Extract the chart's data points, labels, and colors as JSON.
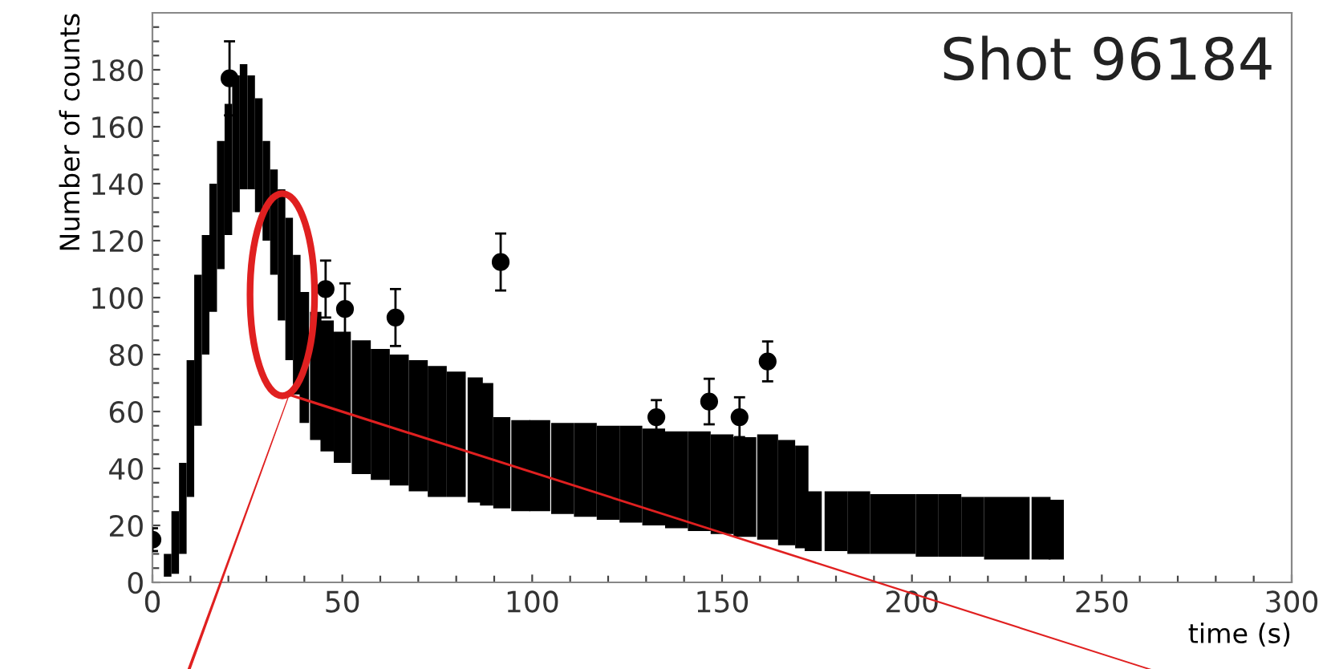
{
  "chart_data": {
    "type": "scatter",
    "title": "Shot 96184",
    "xlabel": "time (s)",
    "ylabel": "Number of counts",
    "xlim": [
      0,
      300
    ],
    "ylim": [
      0,
      200
    ],
    "xticks": [
      0,
      {
        "value": 10,
        "label": null
      },
      {
        "value": 20,
        "label": null
      },
      {
        "value": 30,
        "label": null
      },
      {
        "value": 40,
        "label": null
      },
      50,
      {
        "value": 60,
        "label": null
      },
      {
        "value": 70,
        "label": null
      },
      {
        "value": 80,
        "label": null
      },
      {
        "value": 90,
        "label": null
      },
      100,
      {
        "value": 110,
        "label": null
      },
      {
        "value": 120,
        "label": null
      },
      {
        "value": 130,
        "label": null
      },
      {
        "value": 140,
        "label": null
      },
      150,
      {
        "value": 160,
        "label": null
      },
      {
        "value": 170,
        "label": null
      },
      {
        "value": 180,
        "label": null
      },
      {
        "value": 190,
        "label": null
      },
      200,
      {
        "value": 210,
        "label": null
      },
      {
        "value": 220,
        "label": null
      },
      {
        "value": 230,
        "label": null
      },
      {
        "value": 240,
        "label": null
      },
      250,
      {
        "value": 260,
        "label": null
      },
      {
        "value": 270,
        "label": null
      },
      {
        "value": 280,
        "label": null
      },
      {
        "value": 290,
        "label": null
      },
      300
    ],
    "yticks": [
      0,
      {
        "value": 5,
        "label": null
      },
      {
        "value": 10,
        "label": null
      },
      {
        "value": 15,
        "label": null
      },
      20,
      {
        "value": 25,
        "label": null
      },
      {
        "value": 30,
        "label": null
      },
      {
        "value": 35,
        "label": null
      },
      40,
      {
        "value": 45,
        "label": null
      },
      {
        "value": 50,
        "label": null
      },
      {
        "value": 55,
        "label": null
      },
      60,
      {
        "value": 65,
        "label": null
      },
      {
        "value": 70,
        "label": null
      },
      {
        "value": 75,
        "label": null
      },
      80,
      {
        "value": 85,
        "label": null
      },
      {
        "value": 90,
        "label": null
      },
      {
        "value": 95,
        "label": null
      },
      100,
      {
        "value": 105,
        "label": null
      },
      {
        "value": 110,
        "label": null
      },
      {
        "value": 115,
        "label": null
      },
      120,
      {
        "value": 125,
        "label": null
      },
      {
        "value": 130,
        "label": null
      },
      {
        "value": 135,
        "label": null
      },
      140,
      {
        "value": 145,
        "label": null
      },
      {
        "value": 150,
        "label": null
      },
      {
        "value": 155,
        "label": null
      },
      160,
      {
        "value": 165,
        "label": null
      },
      {
        "value": 170,
        "label": null
      },
      {
        "value": 175,
        "label": null
      },
      180,
      {
        "value": 185,
        "label": null
      },
      {
        "value": 190,
        "label": null
      },
      {
        "value": 195,
        "label": null
      }
    ],
    "grid": false,
    "legend": false,
    "marker": "circle",
    "series": [
      {
        "color": "#000000",
        "x": [
          4,
          6,
          8,
          10,
          12,
          14,
          16,
          18,
          20,
          22,
          24,
          26,
          28,
          30,
          32,
          34,
          36,
          38,
          40,
          43,
          46,
          50,
          55,
          60,
          65,
          70,
          75,
          80,
          85,
          88,
          92,
          97,
          102,
          108,
          114,
          120,
          126,
          132,
          138,
          144,
          150,
          156,
          162,
          167,
          171,
          174,
          180,
          186,
          192,
          198,
          204,
          210,
          216,
          222,
          228,
          234,
          238
        ],
        "type": "bar",
        "base": [
          2,
          3,
          10,
          30,
          55,
          80,
          95,
          110,
          122,
          130,
          138,
          138,
          130,
          120,
          108,
          92,
          78,
          66,
          56,
          50,
          46,
          42,
          38,
          36,
          34,
          32,
          30,
          30,
          28,
          27,
          26,
          25,
          25,
          24,
          23,
          22,
          21,
          20,
          19,
          18,
          17,
          16,
          15,
          13,
          12,
          11,
          11,
          10,
          10,
          10,
          9,
          9,
          9,
          8,
          8,
          8,
          8
        ],
        "values": [
          8,
          22,
          32,
          48,
          53,
          42,
          45,
          45,
          46,
          48,
          44,
          40,
          40,
          35,
          37,
          46,
          50,
          49,
          46,
          45,
          46,
          46,
          47,
          46,
          46,
          46,
          46,
          44,
          44,
          43,
          32,
          32,
          32,
          32,
          33,
          33,
          34,
          34,
          34,
          35,
          35,
          35,
          37,
          37,
          36,
          21,
          21,
          22,
          21,
          21,
          22,
          22,
          21,
          22,
          22,
          22,
          21
        ]
      },
      {
        "color": "#000000",
        "x": [
          0,
          20.3,
          45.6,
          50.7,
          64,
          91.7,
          132.7,
          146.6,
          154.6,
          162
        ],
        "values": [
          15,
          177,
          103,
          96,
          93,
          112.5,
          58,
          63.5,
          58,
          77.6
        ],
        "errors": [
          4,
          13,
          10,
          9,
          10,
          10,
          6,
          8,
          7,
          7
        ]
      }
    ]
  }
}
